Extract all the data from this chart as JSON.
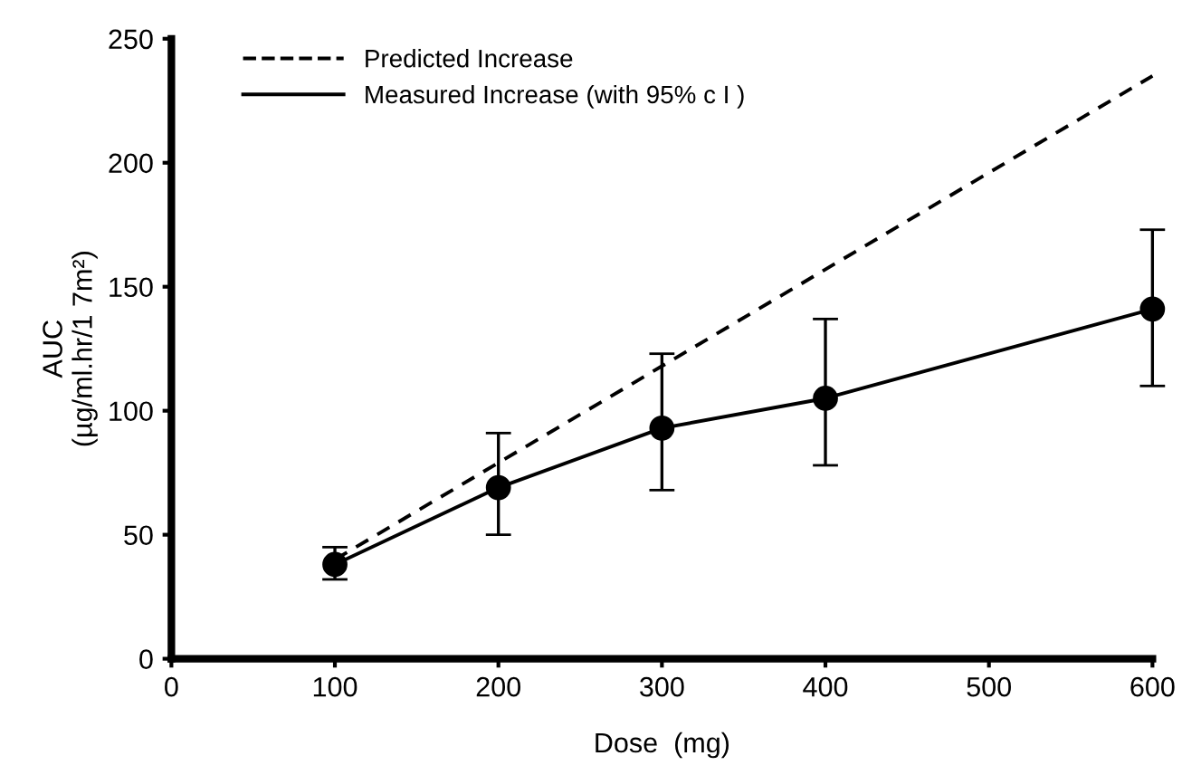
{
  "chart_data": {
    "type": "line",
    "xlabel": "Dose  (mg)",
    "ylabel": "AUC\n(µg/ml.hr/1 7m²)",
    "xlim": [
      0,
      600
    ],
    "xticks": [
      0,
      100,
      200,
      300,
      400,
      500,
      600
    ],
    "ylim": [
      0,
      250
    ],
    "yticks": [
      0,
      50,
      100,
      150,
      200,
      250
    ],
    "grid": false,
    "legend": "top left",
    "series": [
      {
        "name": "Predicted Increase",
        "color": "#000000",
        "x": [
          100,
          600
        ],
        "values": [
          40,
          235
        ],
        "line_style": "dashed",
        "marker": "none"
      },
      {
        "name": "Measured Increase (with 95% c I )",
        "color": "#000000",
        "x": [
          100,
          200,
          300,
          400,
          600
        ],
        "values": [
          38,
          69,
          93,
          105,
          141
        ],
        "line_style": "solid",
        "marker": "circle",
        "errors": [
          [
            32,
            45
          ],
          [
            50,
            91
          ],
          [
            68,
            123
          ],
          [
            78,
            137
          ],
          [
            110,
            173
          ]
        ]
      }
    ]
  }
}
